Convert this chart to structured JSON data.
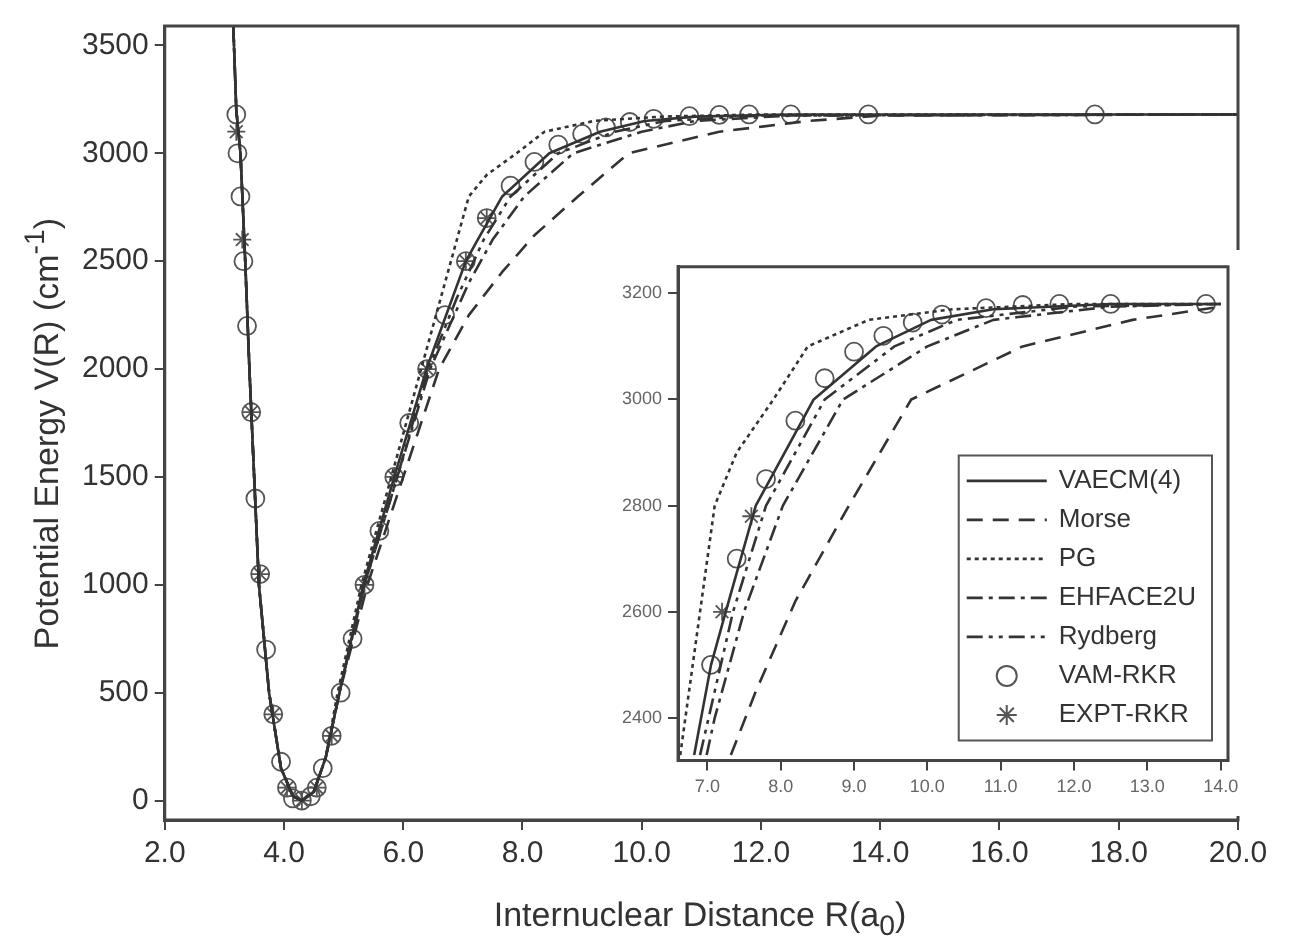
{
  "chart_data": [
    {
      "type": "line",
      "xlabel": "Internuclear Distance R(a$_{0}$)",
      "ylabel": "Potential Energy V(R) (cm$^{-1}$)",
      "xlim": [
        2,
        20
      ],
      "ylim": [
        -90,
        3590
      ],
      "xticks": [
        {
          "value": 2,
          "label": "2.0"
        },
        {
          "value": 4,
          "label": "4.0"
        },
        {
          "value": 6,
          "label": "6.0"
        },
        {
          "value": 8,
          "label": "8.0"
        },
        {
          "value": 10,
          "label": "10.0"
        },
        {
          "value": 12,
          "label": "12.0"
        },
        {
          "value": 14,
          "label": "14.0"
        },
        {
          "value": 16,
          "label": "16.0"
        },
        {
          "value": 18,
          "label": "18.0"
        },
        {
          "value": 20,
          "label": "20.0"
        }
      ],
      "yticks": [
        0,
        500,
        1000,
        1500,
        2000,
        2500,
        3000,
        3500
      ],
      "grid": false,
      "legend": false,
      "series": [
        {
          "type": "line",
          "color": "#333333",
          "line_style": "solid",
          "marker": "none",
          "x": [
            3.15,
            3.2,
            3.27,
            3.35,
            3.42,
            3.5,
            3.58,
            3.75,
            3.95,
            4.15,
            4.3,
            4.5,
            4.7,
            4.93,
            5.33,
            5.85,
            6.39,
            7.05,
            7.25,
            7.66,
            8.45,
            9.3,
            10.05,
            10.9,
            12.5,
            20
          ],
          "values": [
            3590,
            3200,
            3000,
            2500,
            2000,
            1500,
            1000,
            500,
            150,
            20,
            0,
            40,
            200,
            500,
            1000,
            1500,
            2000,
            2500,
            2600,
            2800,
            3000,
            3100,
            3150,
            3170,
            3180,
            3180
          ]
        },
        {
          "type": "line",
          "color": "#333333",
          "line_style": "dashed",
          "marker": "none",
          "x": [
            3.15,
            3.2,
            3.27,
            3.35,
            3.42,
            3.5,
            3.58,
            3.75,
            3.95,
            4.15,
            4.3,
            4.5,
            4.7,
            4.93,
            5.4,
            6.0,
            6.6,
            7.1,
            7.66,
            8.2,
            8.93,
            9.78,
            11.3,
            12.8,
            14,
            20
          ],
          "values": [
            3590,
            3200,
            3000,
            2500,
            2000,
            1500,
            1000,
            500,
            150,
            20,
            0,
            40,
            200,
            500,
            1000,
            1500,
            2000,
            2250,
            2450,
            2620,
            2800,
            3000,
            3100,
            3150,
            3175,
            3180
          ]
        },
        {
          "type": "line",
          "color": "#333333",
          "line_style": "dotted",
          "marker": "none",
          "x": [
            3.15,
            3.2,
            3.27,
            3.35,
            3.42,
            3.5,
            3.58,
            3.75,
            3.95,
            4.15,
            4.3,
            4.5,
            4.7,
            4.9,
            5.3,
            5.8,
            6.3,
            6.8,
            7.1,
            7.4,
            7.9,
            8.37,
            9.2,
            10.35,
            12,
            20
          ],
          "values": [
            3590,
            3200,
            3000,
            2500,
            2000,
            1500,
            1000,
            500,
            150,
            20,
            0,
            40,
            200,
            500,
            1000,
            1500,
            2000,
            2500,
            2800,
            2900,
            3000,
            3100,
            3150,
            3170,
            3180,
            3180
          ]
        },
        {
          "type": "line",
          "color": "#333333",
          "line_style": "dashdot",
          "marker": "none",
          "x": [
            3.15,
            3.2,
            3.27,
            3.35,
            3.42,
            3.5,
            3.58,
            3.75,
            3.95,
            4.15,
            4.3,
            4.5,
            4.7,
            4.93,
            5.35,
            5.9,
            6.45,
            7.1,
            7.5,
            8.03,
            8.85,
            10,
            10.9,
            12.5,
            20
          ],
          "values": [
            3590,
            3200,
            3000,
            2500,
            2000,
            1500,
            1000,
            500,
            150,
            20,
            0,
            40,
            200,
            500,
            1000,
            1500,
            2000,
            2400,
            2600,
            2800,
            3000,
            3100,
            3150,
            3175,
            3180
          ]
        },
        {
          "type": "line",
          "color": "#333333",
          "line_style": "dashdotdot",
          "marker": "none",
          "x": [
            3.15,
            3.2,
            3.27,
            3.35,
            3.42,
            3.5,
            3.58,
            3.75,
            3.95,
            4.15,
            4.3,
            4.5,
            4.7,
            4.93,
            5.35,
            5.9,
            6.42,
            6.9,
            7.35,
            7.8,
            8.6,
            9.55,
            10.4,
            12,
            20
          ],
          "values": [
            3590,
            3200,
            3000,
            2500,
            2000,
            1500,
            1000,
            500,
            150,
            20,
            0,
            40,
            200,
            500,
            1000,
            1500,
            2000,
            2330,
            2600,
            2800,
            3000,
            3100,
            3150,
            3175,
            3180
          ]
        },
        {
          "type": "scatter",
          "color": "#555555",
          "marker": "circle",
          "x": [
            3.2,
            3.22,
            3.27,
            3.32,
            3.38,
            3.45,
            3.52,
            3.6,
            3.7,
            3.82,
            3.95,
            4.05,
            4.15,
            4.3,
            4.45,
            4.55,
            4.65,
            4.8,
            4.95,
            5.15,
            5.35,
            5.6,
            5.85,
            6.1,
            6.4,
            6.7,
            7.05,
            7.4,
            7.8,
            8.2,
            8.6,
            9.0,
            9.4,
            9.8,
            10.2,
            10.8,
            11.3,
            11.8,
            12.5,
            13.8,
            17.6
          ],
          "values": [
            3180,
            3000,
            2800,
            2500,
            2200,
            1800,
            1400,
            1050,
            700,
            400,
            180,
            60,
            10,
            0,
            20,
            60,
            150,
            300,
            500,
            750,
            1000,
            1250,
            1500,
            1750,
            2000,
            2250,
            2500,
            2700,
            2850,
            2960,
            3040,
            3090,
            3120,
            3145,
            3160,
            3172,
            3178,
            3180,
            3180,
            3180,
            3180
          ]
        },
        {
          "type": "scatter",
          "color": "#555555",
          "marker": "cross",
          "x": [
            3.2,
            3.3,
            3.45,
            3.6,
            3.82,
            4.05,
            4.3,
            4.55,
            4.8,
            5.35,
            5.85,
            6.4,
            7.05,
            7.4
          ],
          "values": [
            3100,
            2600,
            1800,
            1050,
            400,
            60,
            0,
            60,
            300,
            1000,
            1500,
            2000,
            2500,
            2700
          ]
        }
      ]
    },
    {
      "type": "line",
      "xlim": [
        6.6,
        14.1
      ],
      "ylim": [
        2320,
        3250
      ],
      "xticks": [
        {
          "value": 7,
          "label": "7.0"
        },
        {
          "value": 8,
          "label": "8.0"
        },
        {
          "value": 9,
          "label": "9.0"
        },
        {
          "value": 10,
          "label": "10.0"
        },
        {
          "value": 11,
          "label": "11.0"
        },
        {
          "value": 12,
          "label": "12.0"
        },
        {
          "value": 13,
          "label": "13.0"
        },
        {
          "value": 14,
          "label": "14.0"
        }
      ],
      "yticks": [
        2400,
        2600,
        2800,
        3000,
        3200
      ],
      "grid": false,
      "legend": "bottom right",
      "series": [
        {
          "name": "VAECM(4)",
          "type": "line",
          "color": "#333333",
          "line_style": "solid",
          "marker": "none",
          "x": [
            6.82,
            7.05,
            7.25,
            7.66,
            8.45,
            9.3,
            10.05,
            10.9,
            12.5,
            14
          ],
          "values": [
            2330,
            2500,
            2600,
            2800,
            3000,
            3100,
            3150,
            3170,
            3180,
            3180
          ]
        },
        {
          "name": "Morse",
          "type": "line",
          "color": "#333333",
          "line_style": "dashed",
          "marker": "none",
          "x": [
            7.32,
            7.66,
            8.2,
            8.93,
            9.78,
            11.3,
            12.8,
            14
          ],
          "values": [
            2330,
            2450,
            2620,
            2800,
            3000,
            3100,
            3150,
            3175
          ]
        },
        {
          "name": "PG",
          "type": "line",
          "color": "#333333",
          "line_style": "dotted",
          "marker": "none",
          "x": [
            6.63,
            6.8,
            7.1,
            7.4,
            7.9,
            8.37,
            9.2,
            10.35,
            12,
            14
          ],
          "values": [
            2330,
            2500,
            2800,
            2900,
            3000,
            3100,
            3150,
            3170,
            3180,
            3180
          ]
        },
        {
          "name": "EHFACE2U",
          "type": "line",
          "color": "#333333",
          "line_style": "dashdot",
          "marker": "none",
          "x": [
            6.99,
            7.1,
            7.5,
            8.03,
            8.85,
            10,
            10.9,
            12.5,
            14
          ],
          "values": [
            2330,
            2400,
            2600,
            2800,
            3000,
            3100,
            3150,
            3175,
            3180
          ]
        },
        {
          "name": "Rydberg",
          "type": "line",
          "color": "#333333",
          "line_style": "dashdotdot",
          "marker": "none",
          "x": [
            6.9,
            7.35,
            7.8,
            8.6,
            9.55,
            10.4,
            12,
            14
          ],
          "values": [
            2330,
            2600,
            2800,
            3000,
            3100,
            3150,
            3175,
            3180
          ]
        },
        {
          "name": "VAM-RKR",
          "type": "scatter",
          "color": "#555555",
          "marker": "circle",
          "x": [
            7.05,
            7.4,
            7.8,
            8.2,
            8.6,
            9.0,
            9.4,
            9.8,
            10.2,
            10.8,
            11.3,
            11.8,
            12.5,
            13.8
          ],
          "values": [
            2500,
            2700,
            2850,
            2960,
            3040,
            3090,
            3120,
            3145,
            3160,
            3172,
            3178,
            3180,
            3180,
            3180
          ]
        },
        {
          "name": "EXPT-RKR",
          "type": "scatter",
          "color": "#555555",
          "marker": "cross",
          "x": [
            7.2,
            7.6
          ],
          "values": [
            2600,
            2780
          ]
        }
      ]
    }
  ]
}
